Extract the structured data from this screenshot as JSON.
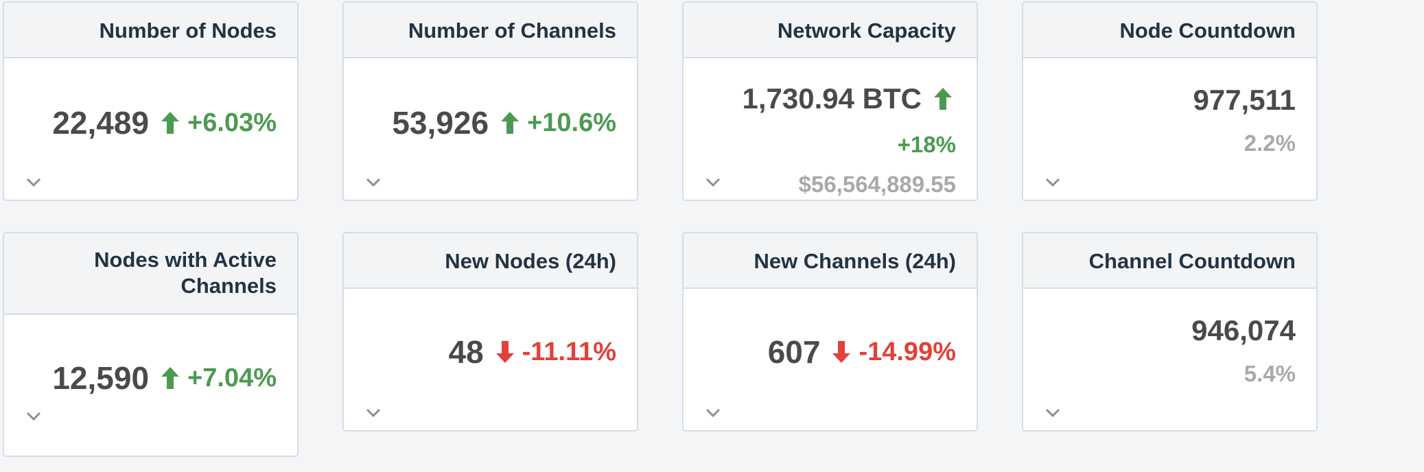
{
  "colors": {
    "up": "#4c9a52",
    "down": "#e2403a",
    "muted": "#a9a9a9",
    "value": "#4a4a4a"
  },
  "cards": [
    {
      "title": "Number of Nodes",
      "value": "22,489",
      "change": "+6.03%",
      "direction": "up"
    },
    {
      "title": "Number of Channels",
      "value": "53,926",
      "change": "+10.6%",
      "direction": "up"
    },
    {
      "title": "Network Capacity",
      "value": "1,730.94 BTC",
      "change": "+18%",
      "direction": "up",
      "fiat": "$56,564,889.55"
    },
    {
      "title": "Node Countdown",
      "value": "977,511",
      "sub": "2.2%"
    },
    {
      "title": "Nodes with Active Channels",
      "value": "12,590",
      "change": "+7.04%",
      "direction": "up"
    },
    {
      "title": "New Nodes (24h)",
      "value": "48",
      "change": "-11.11%",
      "direction": "down"
    },
    {
      "title": "New Channels (24h)",
      "value": "607",
      "change": "-14.99%",
      "direction": "down"
    },
    {
      "title": "Channel Countdown",
      "value": "946,074",
      "sub": "5.4%"
    }
  ],
  "icons": {
    "expand": "chevron-down-icon",
    "increase": "arrow-up-icon",
    "decrease": "arrow-down-icon"
  }
}
